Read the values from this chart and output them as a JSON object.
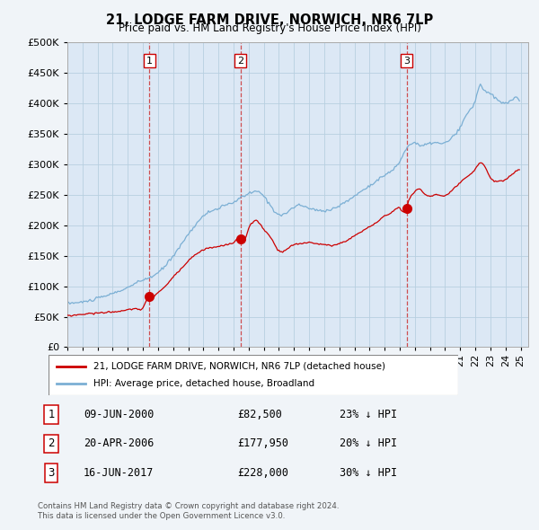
{
  "title": "21, LODGE FARM DRIVE, NORWICH, NR6 7LP",
  "subtitle": "Price paid vs. HM Land Registry's House Price Index (HPI)",
  "ytick_values": [
    0,
    50000,
    100000,
    150000,
    200000,
    250000,
    300000,
    350000,
    400000,
    450000,
    500000
  ],
  "ylim": [
    0,
    500000
  ],
  "xlim_start": 1995.0,
  "xlim_end": 2025.5,
  "sale_color": "#cc0000",
  "hpi_color": "#7bafd4",
  "sale_label": "21, LODGE FARM DRIVE, NORWICH, NR6 7LP (detached house)",
  "hpi_label": "HPI: Average price, detached house, Broadland",
  "transactions": [
    {
      "num": 1,
      "date_x": 2000.44,
      "price": 82500,
      "label": "09-JUN-2000",
      "price_str": "£82,500",
      "pct": "23% ↓ HPI"
    },
    {
      "num": 2,
      "date_x": 2006.46,
      "price": 177950,
      "label": "20-APR-2006",
      "price_str": "£177,950",
      "pct": "20% ↓ HPI"
    },
    {
      "num": 3,
      "date_x": 2017.46,
      "price": 228000,
      "label": "16-JUN-2017",
      "price_str": "£228,000",
      "pct": "30% ↓ HPI"
    }
  ],
  "footer_line1": "Contains HM Land Registry data © Crown copyright and database right 2024.",
  "footer_line2": "This data is licensed under the Open Government Licence v3.0.",
  "background_color": "#f0f4f8",
  "plot_bg_color": "#dce8f5",
  "grid_color": "#b8cfe0"
}
